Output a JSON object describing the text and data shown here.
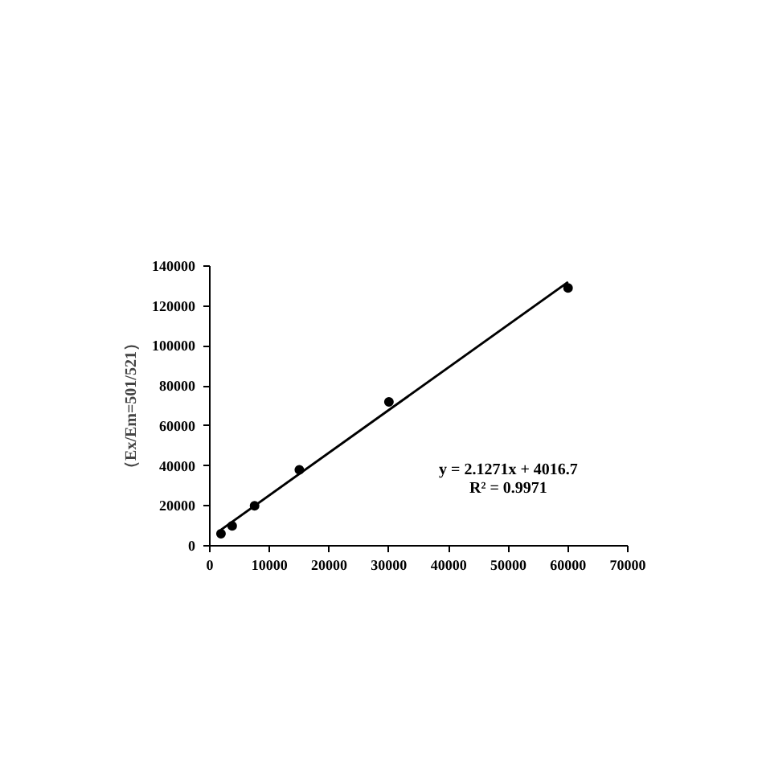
{
  "chart_data": {
    "type": "scatter",
    "ylabel": "（Ex/Em=501/521）",
    "annotations": [
      "y = 2.1271x + 4016.7",
      "R² = 0.9971"
    ],
    "x": [
      1875,
      3750,
      7500,
      15000,
      30000,
      60000
    ],
    "series": [
      {
        "color": "#000000",
        "values": [
          6000,
          10000,
          20000,
          38000,
          72000,
          129000
        ]
      },
      {
        "type": "line",
        "marker": "none",
        "color": "#000000",
        "x": [
          1875,
          60000
        ],
        "values": [
          8000,
          132000
        ]
      }
    ],
    "marker": "circle",
    "line_style": "solid",
    "grid": false,
    "xlim": [
      0,
      70000
    ],
    "ylim": [
      0,
      140000
    ],
    "xticks": [
      0,
      10000,
      20000,
      30000,
      40000,
      50000,
      60000,
      70000
    ],
    "yticks": [
      0,
      20000,
      40000,
      60000,
      80000,
      100000,
      120000,
      140000
    ]
  }
}
